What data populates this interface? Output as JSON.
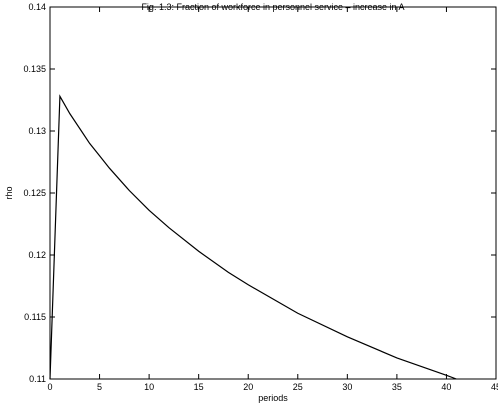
{
  "chart_data": {
    "type": "line",
    "title": "Fig. 1.3: Fraction of workforce in personnel service – increase in A",
    "x_label": "periods",
    "y_label": "rho",
    "x": [
      0,
      1,
      2,
      3,
      4,
      5,
      6,
      8,
      10,
      12,
      15,
      18,
      20,
      25,
      30,
      35,
      40,
      41
    ],
    "series": [
      {
        "color": "#000000",
        "values": [
          0.11,
          0.1328,
          0.1314,
          0.1302,
          0.129,
          0.128,
          0.127,
          0.1252,
          0.1236,
          0.1222,
          0.1203,
          0.1186,
          0.1176,
          0.1153,
          0.1134,
          0.1117,
          0.1103,
          0.11
        ]
      }
    ],
    "xlim": [
      0,
      45
    ],
    "xticks": [
      0,
      5,
      10,
      15,
      20,
      25,
      30,
      35,
      40,
      45
    ],
    "ylim": [
      0.11,
      0.14
    ],
    "yticks": [
      0.11,
      0.115,
      0.12,
      0.125,
      0.13,
      0.135,
      0.14
    ],
    "grid": false
  }
}
